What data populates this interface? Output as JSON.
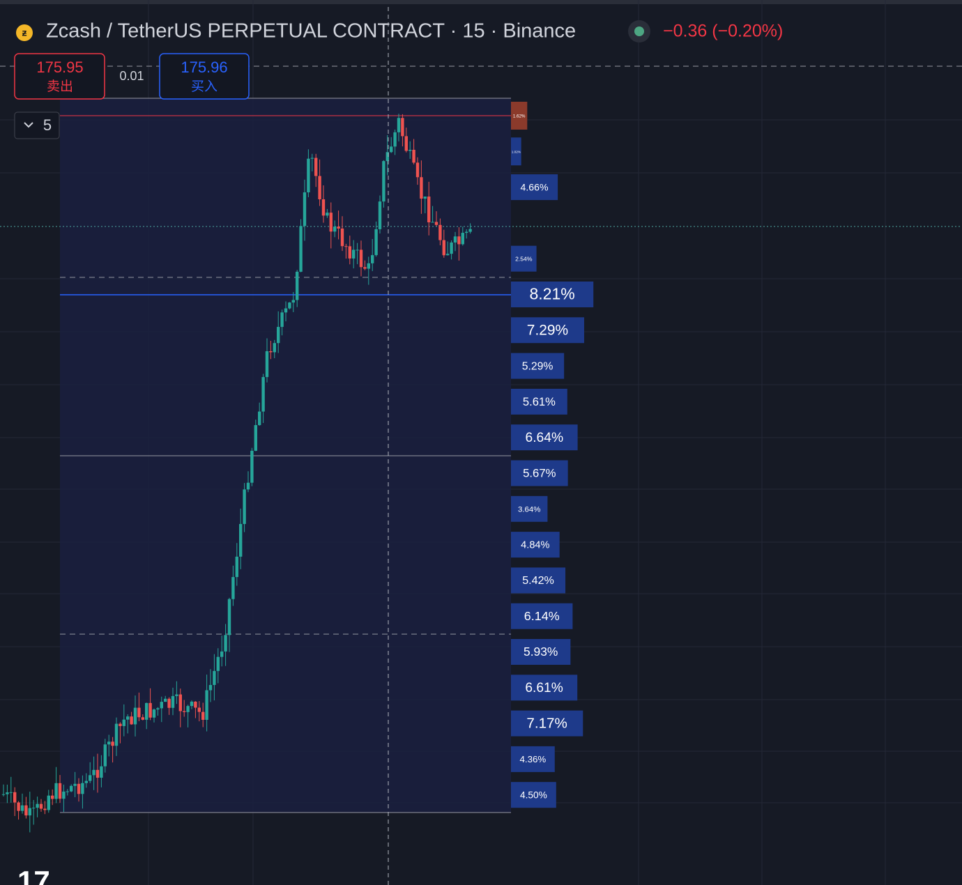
{
  "header": {
    "title": "Zcash / TetherUS PERPETUAL CONTRACT · 15 · Binance",
    "change": "−0.36 (−0.20%)"
  },
  "order_panel": {
    "sell_price": "175.95",
    "sell_label": "卖出",
    "spread": "0.01",
    "buy_price": "175.96",
    "buy_label": "买入"
  },
  "interval_selector": "5",
  "volume_profile": {
    "values": [
      1.62,
      1.02,
      4.66,
      null,
      2.54,
      8.21,
      7.29,
      5.29,
      5.61,
      6.64,
      5.67,
      3.64,
      4.84,
      5.42,
      6.14,
      5.93,
      6.61,
      7.17,
      4.36,
      4.5
    ],
    "value_labels": [
      "1.62%",
      "1.02%",
      "4.66%",
      null,
      "2.54%",
      "8.21%",
      "7.29%",
      "5.29%",
      "5.61%",
      "6.64%",
      "5.67%",
      "3.64%",
      "4.84%",
      "5.42%",
      "6.14%",
      "5.93%",
      "6.61%",
      "7.17%",
      "4.36%",
      "4.50%"
    ]
  }
}
